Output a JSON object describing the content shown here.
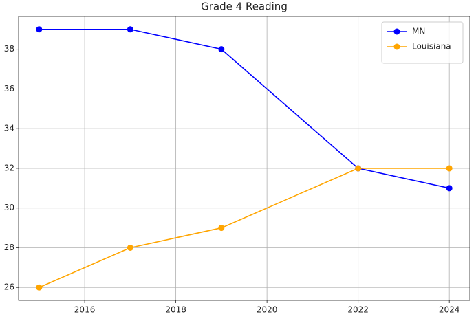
{
  "chart_data": {
    "type": "line",
    "title": "Grade 4 Reading",
    "x": [
      2015,
      2017,
      2019,
      2022,
      2024
    ],
    "series": [
      {
        "name": "MN",
        "color": "#0000ff",
        "values": [
          39,
          39,
          38,
          32,
          31
        ]
      },
      {
        "name": "Louisiana",
        "color": "#ffa500",
        "values": [
          26,
          28,
          29,
          32,
          32
        ]
      }
    ],
    "xlim": [
      2014.55,
      2024.45
    ],
    "xticks": [
      2016,
      2018,
      2020,
      2022,
      2024
    ],
    "ylim": [
      25.35,
      39.65
    ],
    "yticks": [
      26,
      28,
      30,
      32,
      34,
      36,
      38
    ],
    "grid": true,
    "legend": "upper right"
  }
}
